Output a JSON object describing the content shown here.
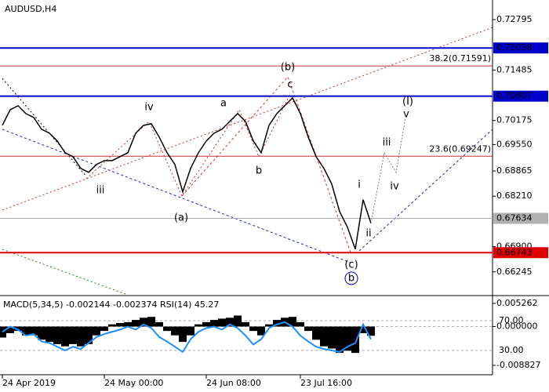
{
  "chart_data": [
    {
      "type": "line",
      "title": "AUDUSD,H4",
      "xlim": [
        0,
        62.5
      ],
      "xticks": [
        {
          "value": 0,
          "label": "24 Apr 2019"
        },
        {
          "value": 13,
          "label": "24 May 00:00"
        },
        {
          "value": 26,
          "label": "24 Jun 08:00"
        },
        {
          "value": 38,
          "label": "23 Jul 16:00"
        }
      ],
      "ylim": [
        0.6567,
        0.73304
      ],
      "yticks": [
        0.72795,
        0.71485,
        0.70175,
        {
          "value": 0.6955,
          "label": "0.69550"
        },
        0.68865,
        {
          "value": 0.6821,
          "label": "0.68210"
        },
        {
          "value": 0.669,
          "label": "0.66900"
        },
        0.66245
      ],
      "series": [
        {
          "color": "#000000",
          "values": [
            0.7005,
            0.70456,
            0.70558,
            0.70355,
            0.70253,
            0.69948,
            0.69846,
            0.69643,
            0.69338,
            0.69236,
            0.68931,
            0.68829,
            0.69033,
            0.69134,
            0.69134,
            0.69236,
            0.69338,
            0.69846,
            0.7005,
            0.7009,
            0.69745,
            0.69338,
            0.69033,
            0.68321,
            0.68931,
            0.69338,
            0.69643,
            0.69846,
            0.69948,
            0.70151,
            0.70355,
            0.70151,
            0.69643,
            0.69338,
            0.7005,
            0.70355,
            0.70558,
            0.70762,
            0.70355,
            0.69745,
            0.69236,
            0.68931,
            0.68524,
            0.67812,
            0.67405,
            0.66836,
            0.68117,
            0.67507
          ]
        }
      ],
      "forecast": {
        "color": "#808080",
        "x": [
          48.7,
          50.2,
          51.4
        ],
        "values": [
          0.69338,
          0.68829,
          0.70253
        ]
      },
      "levels": [
        {
          "value": 0.72058,
          "color": "#0000cc",
          "box": true
        },
        {
          "value": 0.70807,
          "color": "#0000cc",
          "box": true
        },
        {
          "value": 0.66743,
          "color": "#e00000",
          "box": true
        },
        {
          "value": 0.67634,
          "color": "#b0b0b0",
          "box": true
        },
        {
          "value": 0.71591,
          "color": "#c83232",
          "label": "38.2(0.71591)"
        },
        {
          "value": 0.69247,
          "color": "#c83232",
          "label": "23.6(0.69247)"
        }
      ],
      "annotations": [
        "iv",
        "a",
        "(b)",
        "c",
        "(I)",
        "v",
        "iii",
        "iv",
        "i",
        "ii",
        "(c)",
        "b",
        "iii",
        "(a)",
        "b"
      ]
    },
    {
      "type": "bar",
      "label": "MACD(5,34,5) -0.002144 -0.002374 RSI(14) 45.27",
      "ylim": [
        -0.00954,
        0.00651
      ],
      "yticks": [
        0.005262,
        {
          "value": 0,
          "label": "0.000000"
        },
        -0.008827
      ],
      "y2lim": [
        5.8,
        100.5
      ],
      "y2ticks": [
        {
          "value": 70,
          "label": "70.00"
        },
        {
          "value": 30,
          "label": "30.00"
        }
      ],
      "series": [
        {
          "type": "bar",
          "color": "#000000",
          "values": [
            -0.0025,
            -0.0015,
            -0.001,
            -0.002,
            -0.002,
            -0.003,
            -0.0035,
            -0.004,
            -0.0045,
            -0.004,
            -0.0045,
            -0.004,
            -0.002,
            -0.001,
            0.0005,
            0.0008,
            0.001,
            0.0015,
            0.002,
            0.0022,
            0.001,
            -0.001,
            -0.002,
            -0.0035,
            -0.002,
            0.0005,
            0.001,
            0.0015,
            0.0018,
            0.002,
            0.0025,
            0.001,
            -0.001,
            -0.002,
            0.0005,
            0.0015,
            0.002,
            0.0022,
            0.001,
            -0.001,
            -0.003,
            -0.0045,
            -0.005,
            -0.006,
            -0.0055,
            -0.006,
            -0.0015,
            -0.0021
          ]
        },
        {
          "type": "line",
          "axis": "y2",
          "color": "#1e90ff",
          "values": [
            55,
            62,
            58,
            50,
            52,
            42,
            40,
            35,
            30,
            35,
            32,
            40,
            48,
            52,
            55,
            58,
            62,
            58,
            65,
            60,
            48,
            42,
            35,
            28,
            45,
            55,
            60,
            62,
            58,
            65,
            60,
            50,
            38,
            45,
            60,
            65,
            68,
            62,
            50,
            42,
            35,
            32,
            30,
            28,
            35,
            40,
            65,
            45
          ]
        }
      ]
    }
  ]
}
